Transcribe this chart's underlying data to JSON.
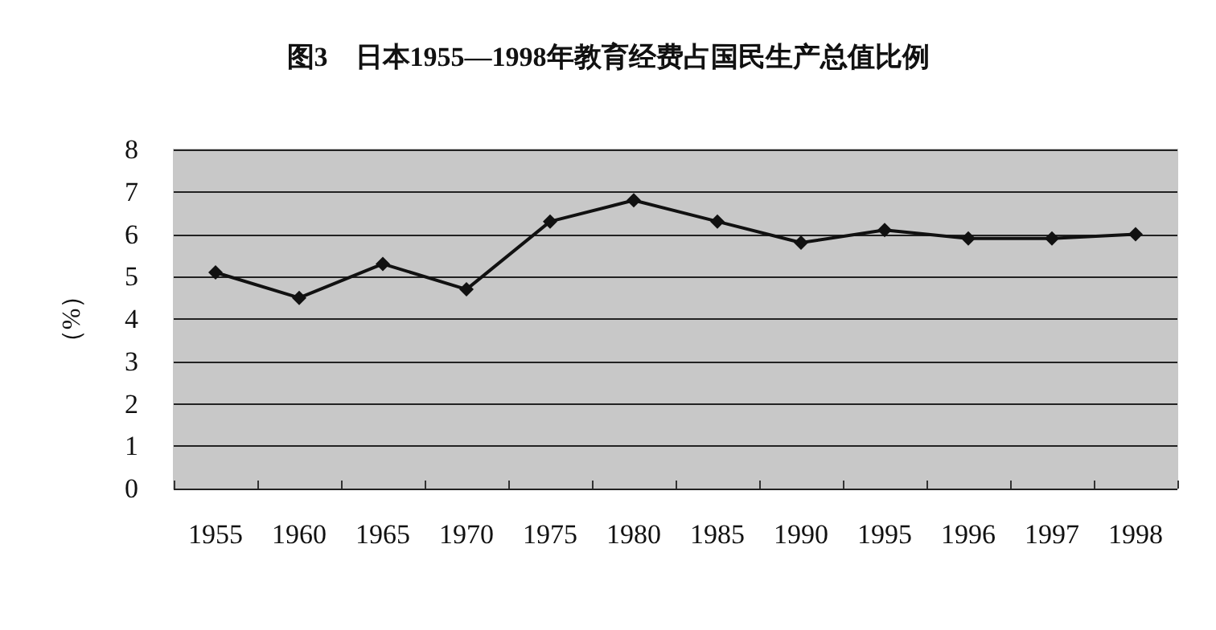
{
  "chart_data": {
    "type": "line",
    "title": "图3　日本1955—1998年教育经费占国民生产总值比例",
    "ylabel": "（%）",
    "categories": [
      "1955",
      "1960",
      "1965",
      "1970",
      "1975",
      "1980",
      "1985",
      "1990",
      "1995",
      "1996",
      "1997",
      "1998"
    ],
    "series": [
      {
        "color": "#111111",
        "values": [
          5.1,
          4.5,
          5.3,
          4.7,
          6.3,
          6.8,
          6.3,
          5.8,
          6.1,
          5.9,
          5.9,
          6.0
        ]
      }
    ],
    "ylim": [
      0,
      8
    ],
    "yticks": [
      0,
      1,
      2,
      3,
      4,
      5,
      6,
      7,
      8
    ],
    "grid": "y",
    "marker": "diamond",
    "line_style": "solid"
  }
}
